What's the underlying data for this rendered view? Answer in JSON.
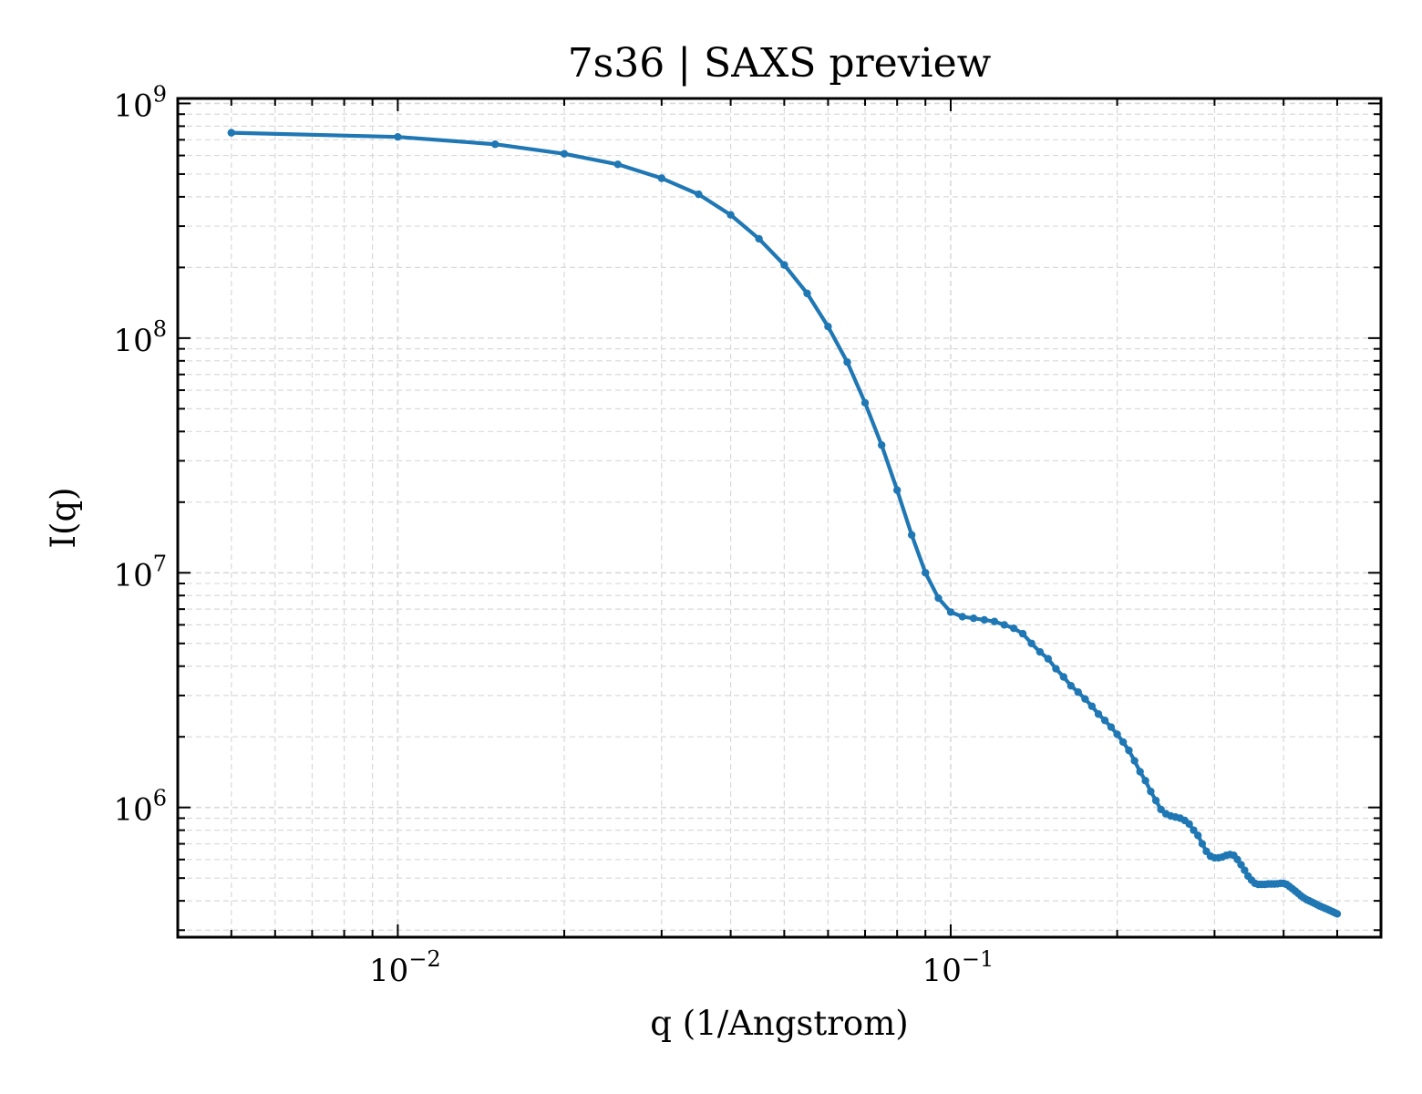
{
  "colors": {
    "series": "#1f77b4",
    "grid": "#d9d9d9",
    "axis": "#000000",
    "background": "#ffffff"
  },
  "chart_data": {
    "type": "line",
    "title": "7s36 | SAXS preview",
    "xlabel": "q (1/Angstrom)",
    "ylabel": "I(q)",
    "xscale": "log",
    "yscale": "log",
    "xlim": [
      0.004,
      0.6
    ],
    "ylim": [
      280000,
      1050000000
    ],
    "grid": true,
    "legend": "none",
    "x_ticks": [
      {
        "base": "10",
        "exp": "−2",
        "value": 0.01
      },
      {
        "base": "10",
        "exp": "−1",
        "value": 0.1
      }
    ],
    "y_ticks": [
      {
        "base": "10",
        "exp": "6",
        "value": 1000000
      },
      {
        "base": "10",
        "exp": "7",
        "value": 10000000
      },
      {
        "base": "10",
        "exp": "8",
        "value": 100000000
      },
      {
        "base": "10",
        "exp": "9",
        "value": 1000000000
      }
    ],
    "series": [
      {
        "marker": "circle",
        "x": [
          0.005,
          0.01,
          0.015,
          0.02,
          0.025,
          0.03,
          0.035,
          0.04,
          0.045,
          0.05,
          0.055,
          0.06,
          0.065,
          0.07,
          0.075,
          0.08,
          0.085,
          0.09,
          0.095,
          0.1,
          0.105,
          0.11,
          0.115,
          0.12,
          0.125,
          0.13,
          0.135,
          0.14,
          0.145,
          0.15,
          0.155,
          0.16,
          0.165,
          0.17,
          0.175,
          0.18,
          0.185,
          0.19,
          0.195,
          0.2,
          0.205,
          0.21,
          0.215,
          0.22,
          0.225,
          0.23,
          0.235,
          0.24,
          0.245,
          0.25,
          0.255,
          0.26,
          0.265,
          0.27,
          0.275,
          0.28,
          0.285,
          0.29,
          0.295,
          0.3,
          0.305,
          0.31,
          0.315,
          0.32,
          0.325,
          0.33,
          0.335,
          0.34,
          0.345,
          0.35,
          0.355,
          0.36,
          0.365,
          0.37,
          0.375,
          0.38,
          0.385,
          0.39,
          0.395,
          0.4,
          0.405,
          0.41,
          0.415,
          0.42,
          0.425,
          0.43,
          0.435,
          0.44,
          0.445,
          0.45,
          0.455,
          0.46,
          0.465,
          0.47,
          0.475,
          0.48,
          0.485,
          0.49,
          0.495,
          0.5
        ],
        "y": [
          750000000,
          720000000,
          670000000,
          610000000,
          550000000,
          480000000,
          410000000,
          335000000,
          265000000,
          205000000,
          155000000,
          112000000,
          79000000,
          53000000,
          35000000,
          22500000,
          14500000,
          10000000,
          7800000,
          6800000,
          6500000,
          6400000,
          6300000,
          6200000,
          6000000,
          5800000,
          5500000,
          5000000,
          4600000,
          4300000,
          3900000,
          3600000,
          3300000,
          3100000,
          2900000,
          2700000,
          2500000,
          2350000,
          2200000,
          2050000,
          1900000,
          1750000,
          1580000,
          1420000,
          1300000,
          1170000,
          1070000,
          980000,
          940000,
          920000,
          910000,
          900000,
          880000,
          850000,
          800000,
          760000,
          700000,
          650000,
          620000,
          610000,
          610000,
          615000,
          625000,
          630000,
          625000,
          600000,
          570000,
          540000,
          510000,
          490000,
          475000,
          470000,
          470000,
          470000,
          472000,
          472000,
          472000,
          473000,
          475000,
          475000,
          470000,
          460000,
          450000,
          440000,
          430000,
          420000,
          412000,
          405000,
          400000,
          395000,
          390000,
          385000,
          380000,
          376000,
          372000,
          368000,
          364000,
          360000,
          356000,
          352000
        ]
      }
    ]
  }
}
